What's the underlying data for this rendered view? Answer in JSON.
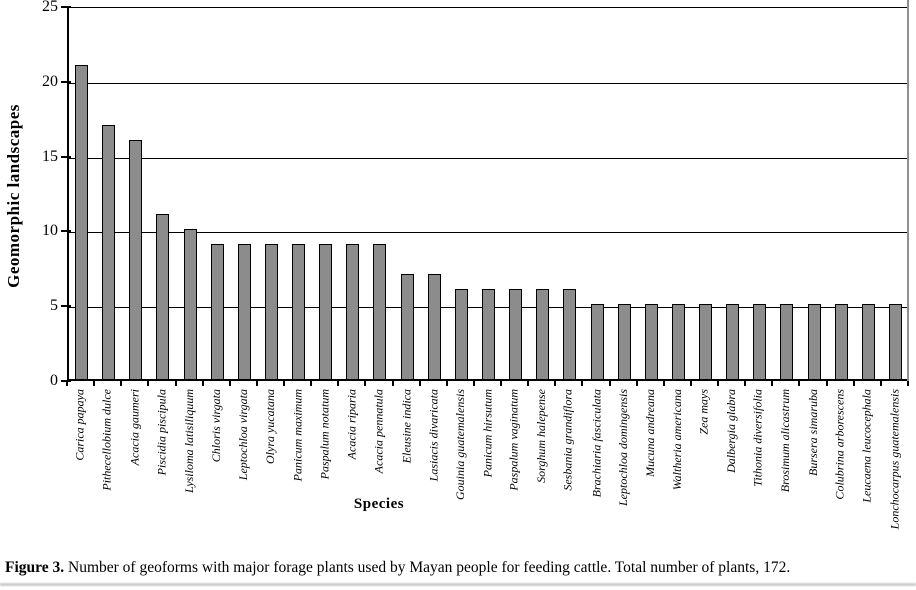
{
  "chart_data": {
    "type": "bar",
    "title": "",
    "ylabel": "Geomorphic landscapes",
    "xlabel": "Species",
    "ylim": [
      0,
      25
    ],
    "yticks": [
      0,
      5,
      10,
      15,
      20,
      25
    ],
    "grid": true,
    "legend_position": "none",
    "bar_color": "#8c8c8c",
    "bar_border_color": "#000000",
    "categories": [
      "Carica papaya",
      "Pithecellobium dulce",
      "Acacia gaumeri",
      "Piscidia piscipula",
      "Lysiloma latisiliquum",
      "Chloris virgata",
      "Leptochloa virgata",
      "Olyra yucatana",
      "Panicum maximum",
      "Paspalum notatum",
      "Acacia riparia",
      "Acacia pennatula",
      "Eleusine indica",
      "Lasiacis divaricata",
      "Gouinia guatemalensis",
      "Panicum hirsutum",
      "Paspalum vaginatum",
      "Sorghum halepense",
      "Sesbania grandiflora",
      "Brachiaria fasciculata",
      "Leptochloa domingensis",
      "Mucuna andreana",
      "Waltheria americana",
      "Zea mays",
      "Dalbergia glabra",
      "Tithonia diversifolia",
      "Brosimum alicastrum",
      "Bursera simaruba",
      "Colubrina arborescens",
      "Leucaena leucocephala",
      "Lonchocarpus guatemalensis"
    ],
    "values": [
      21,
      17,
      16,
      11,
      10,
      9,
      9,
      9,
      9,
      9,
      9,
      9,
      7,
      7,
      6,
      6,
      6,
      6,
      6,
      5,
      5,
      5,
      5,
      5,
      5,
      5,
      5,
      5,
      5,
      5,
      5
    ]
  },
  "caption": {
    "label": "Figure 3.",
    "text": " Number of geoforms with major forage plants used by Mayan people for feeding cattle. Total number of plants, 172."
  }
}
